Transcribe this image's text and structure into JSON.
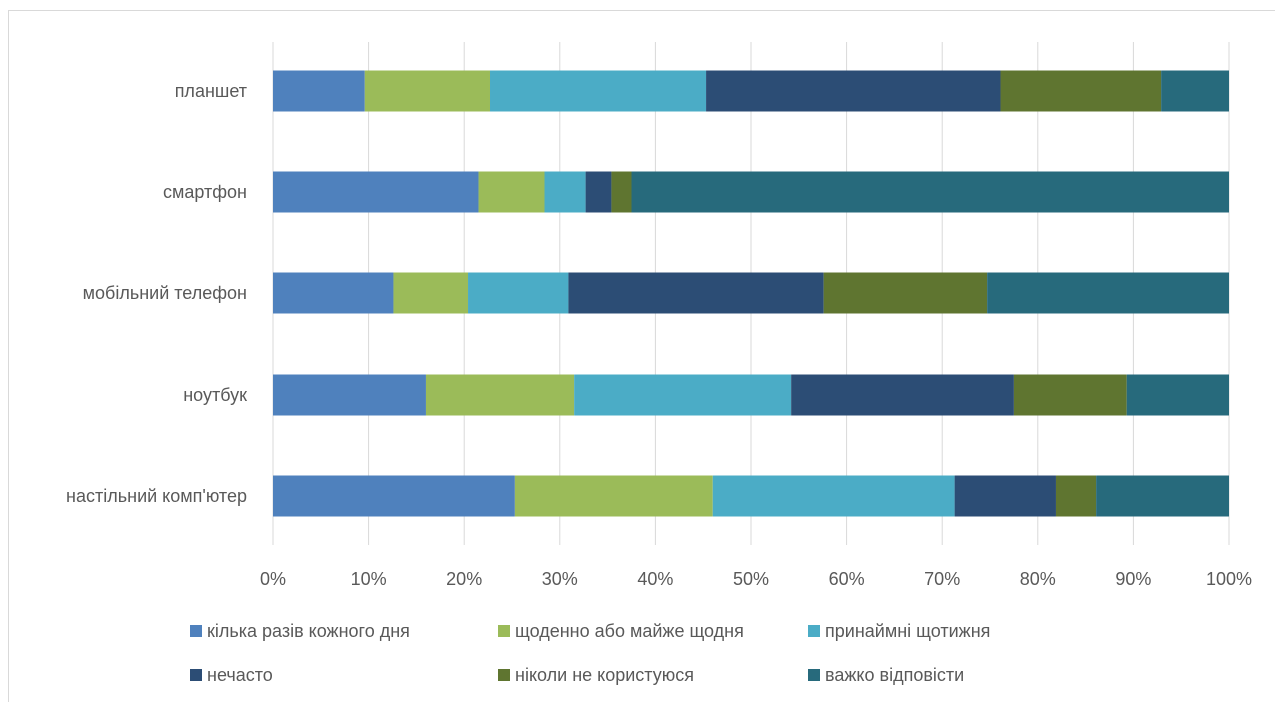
{
  "chart_data": {
    "type": "bar",
    "orientation": "horizontal",
    "stacked": "percent",
    "title": "",
    "xlabel": "",
    "ylabel": "",
    "xlim": [
      0,
      100
    ],
    "x_ticks": [
      "0%",
      "10%",
      "20%",
      "30%",
      "40%",
      "50%",
      "60%",
      "70%",
      "80%",
      "90%",
      "100%"
    ],
    "grid": "vertical",
    "legend_position": "bottom",
    "categories": [
      "планшет",
      "смартфон",
      "мобільний телефон ",
      "ноутбук",
      "настільний комп'ютер"
    ],
    "series": [
      {
        "name": "кілька разів кожного дня",
        "color": "#4f81bd",
        "values": [
          9.6,
          21.5,
          12.6,
          16.0,
          25.3
        ]
      },
      {
        "name": "щоденно або майже щодня",
        "color": "#9bbb59",
        "values": [
          13.1,
          6.9,
          7.8,
          15.5,
          20.7
        ]
      },
      {
        "name": "принаймні щотижня",
        "color": "#4bacc6",
        "values": [
          22.6,
          4.3,
          10.5,
          22.7,
          25.3
        ]
      },
      {
        "name": "нечасто",
        "color": "#2c4d75",
        "values": [
          30.8,
          2.7,
          26.7,
          23.3,
          10.6
        ]
      },
      {
        "name": "ніколи не користуюся",
        "color": "#5f7530",
        "values": [
          16.8,
          2.1,
          17.1,
          11.8,
          4.2
        ]
      },
      {
        "name": "важко відповісти",
        "color": "#276a7c",
        "values": [
          7.1,
          62.5,
          25.3,
          10.7,
          13.9
        ]
      }
    ]
  }
}
